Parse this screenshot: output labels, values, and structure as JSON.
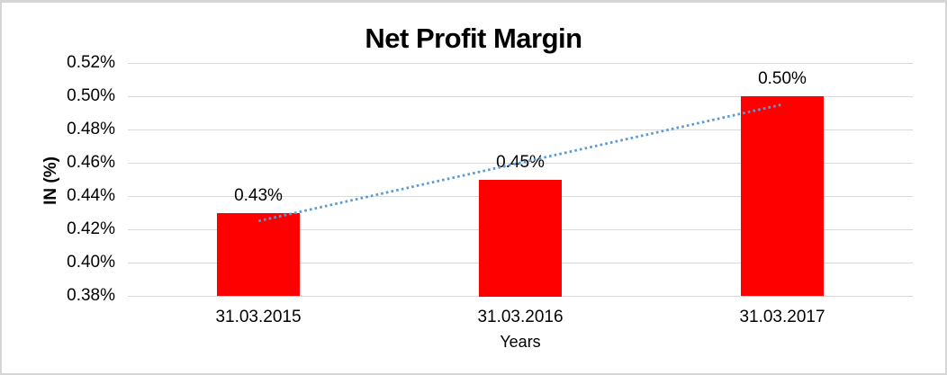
{
  "window": {
    "background": "#FFFFFF",
    "border_color": "#D5D5D5"
  },
  "chart_data": {
    "type": "bar",
    "title": "Net Profit Margin",
    "categories": [
      "31.03.2015",
      "31.03.2016",
      "31.03.2017"
    ],
    "values": [
      0.43,
      0.45,
      0.5
    ],
    "data_labels": [
      "0.43%",
      "0.45%",
      "0.50%"
    ],
    "xlabel": "Years",
    "ylabel": "IN (%)",
    "ylim": [
      0.38,
      0.52
    ],
    "yticks": [
      0.38,
      0.4,
      0.42,
      0.44,
      0.46,
      0.48,
      0.5,
      0.52
    ],
    "ytick_labels": [
      "0.38%",
      "0.40%",
      "0.42%",
      "0.44%",
      "0.46%",
      "0.48%",
      "0.50%",
      "0.52%"
    ],
    "grid": true,
    "legend": "none",
    "bar_color": "#FF0000",
    "gridline_color": "#D9D9D9",
    "axis_text_color": "#000000",
    "trendline": {
      "type": "linear",
      "style": "dotted",
      "color": "#5B9BD5",
      "start_value": 0.425,
      "end_value": 0.495
    }
  }
}
